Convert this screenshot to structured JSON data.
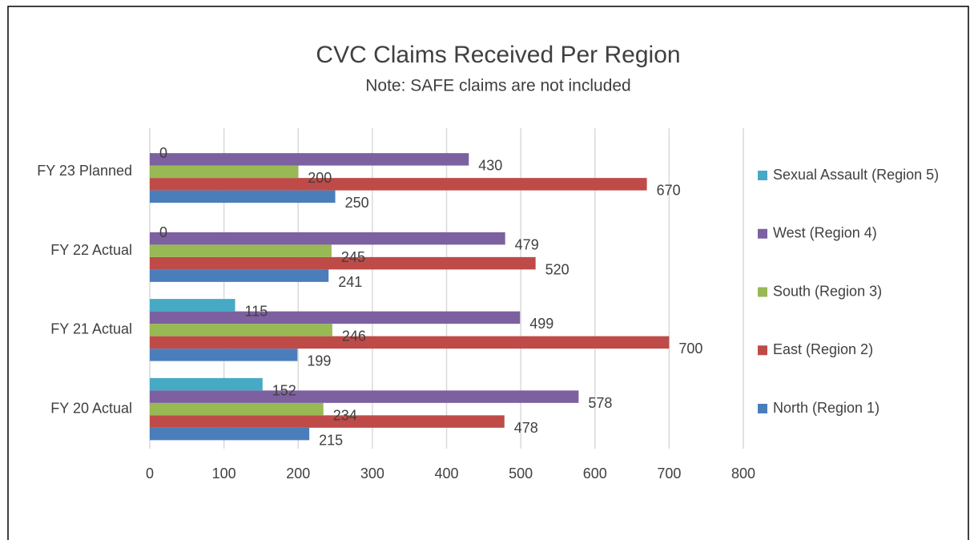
{
  "chart_data": {
    "type": "bar",
    "orientation": "horizontal",
    "title": "CVC Claims Received Per Region",
    "subtitle": "Note: SAFE claims are not included",
    "categories": [
      "FY 20 Actual",
      "FY 21 Actual",
      "FY 22 Actual",
      "FY 23 Planned"
    ],
    "series": [
      {
        "name": "North (Region 1)",
        "color": "#4a7ebb",
        "values": [
          215,
          199,
          241,
          250
        ]
      },
      {
        "name": "East (Region 2)",
        "color": "#be4b48",
        "values": [
          478,
          700,
          520,
          670
        ]
      },
      {
        "name": "South (Region 3)",
        "color": "#98b954",
        "values": [
          234,
          246,
          245,
          200
        ]
      },
      {
        "name": "West (Region 4)",
        "color": "#7d60a0",
        "values": [
          578,
          499,
          479,
          430
        ]
      },
      {
        "name": "Sexual Assault (Region 5)",
        "color": "#46aac5",
        "values": [
          152,
          115,
          0,
          0
        ]
      }
    ],
    "xlim": [
      0,
      800
    ],
    "xticks": [
      0,
      100,
      200,
      300,
      400,
      500,
      600,
      700,
      800
    ],
    "grid": true,
    "legend": "right"
  }
}
